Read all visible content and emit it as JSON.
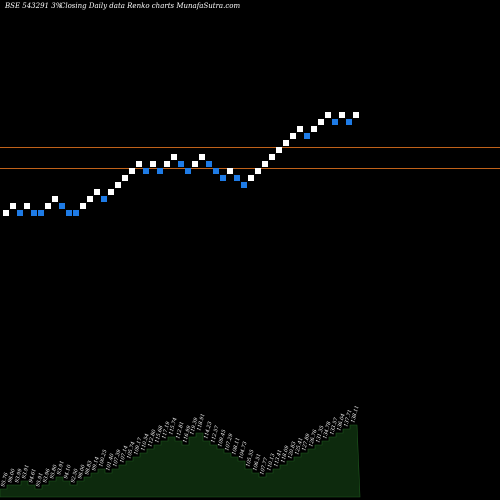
{
  "header": {
    "left": "BSE 543291 3%",
    "middle": "Closing Daily data  Renko  charts MunafaSutra.com"
  },
  "colors": {
    "background": "#000000",
    "up_brick": "#ffffff",
    "down_brick": "#1e7be6",
    "reference_line": "#c0621a",
    "volume_fill": "#0d2a0d",
    "text": "#ffffff"
  },
  "chart_data": {
    "type": "renko",
    "brick_size_percent": 3,
    "bricks": [
      {
        "dir": "up",
        "level": 7
      },
      {
        "dir": "up",
        "level": 8
      },
      {
        "dir": "down",
        "level": 7
      },
      {
        "dir": "up",
        "level": 8
      },
      {
        "dir": "down",
        "level": 7
      },
      {
        "dir": "down",
        "level": 7
      },
      {
        "dir": "up",
        "level": 8
      },
      {
        "dir": "up",
        "level": 9
      },
      {
        "dir": "down",
        "level": 8
      },
      {
        "dir": "down",
        "level": 7
      },
      {
        "dir": "down",
        "level": 7
      },
      {
        "dir": "up",
        "level": 8
      },
      {
        "dir": "up",
        "level": 9
      },
      {
        "dir": "up",
        "level": 10
      },
      {
        "dir": "down",
        "level": 9
      },
      {
        "dir": "up",
        "level": 10
      },
      {
        "dir": "up",
        "level": 11
      },
      {
        "dir": "up",
        "level": 12
      },
      {
        "dir": "up",
        "level": 13
      },
      {
        "dir": "up",
        "level": 14
      },
      {
        "dir": "down",
        "level": 13
      },
      {
        "dir": "up",
        "level": 14
      },
      {
        "dir": "down",
        "level": 13
      },
      {
        "dir": "up",
        "level": 14
      },
      {
        "dir": "up",
        "level": 15
      },
      {
        "dir": "down",
        "level": 14
      },
      {
        "dir": "down",
        "level": 13
      },
      {
        "dir": "up",
        "level": 14
      },
      {
        "dir": "up",
        "level": 15
      },
      {
        "dir": "down",
        "level": 14
      },
      {
        "dir": "down",
        "level": 13
      },
      {
        "dir": "down",
        "level": 12
      },
      {
        "dir": "up",
        "level": 13
      },
      {
        "dir": "down",
        "level": 12
      },
      {
        "dir": "down",
        "level": 11
      },
      {
        "dir": "up",
        "level": 12
      },
      {
        "dir": "up",
        "level": 13
      },
      {
        "dir": "up",
        "level": 14
      },
      {
        "dir": "up",
        "level": 15
      },
      {
        "dir": "up",
        "level": 16
      },
      {
        "dir": "up",
        "level": 17
      },
      {
        "dir": "up",
        "level": 18
      },
      {
        "dir": "up",
        "level": 19
      },
      {
        "dir": "down",
        "level": 18
      },
      {
        "dir": "up",
        "level": 19
      },
      {
        "dir": "up",
        "level": 20
      },
      {
        "dir": "up",
        "level": 21
      },
      {
        "dir": "down",
        "level": 20
      },
      {
        "dir": "up",
        "level": 21
      },
      {
        "dir": "down",
        "level": 20
      },
      {
        "dir": "up",
        "level": 21
      }
    ],
    "reference_lines": [
      {
        "level": 16.5
      },
      {
        "level": 13.5
      }
    ],
    "volume_profile": [
      2,
      3,
      3,
      4,
      3,
      2,
      3,
      4,
      5,
      4,
      3,
      4,
      5,
      6,
      7,
      6,
      7,
      8,
      9,
      10,
      11,
      12,
      13,
      14,
      15,
      14,
      13,
      15,
      16,
      14,
      13,
      12,
      11,
      10,
      9,
      7,
      6,
      5,
      6,
      7,
      8,
      9,
      10,
      11,
      12,
      13,
      14,
      15,
      16,
      17,
      18
    ],
    "volume_labels": [
      "95.76",
      "96.00",
      "93.99",
      "93.91",
      "94.61",
      "95.91",
      "93.96",
      "95.80",
      "93.91",
      "94.10",
      "92.50",
      "96.00",
      "98.83",
      "99.14",
      "100.25",
      "101.40",
      "107.39",
      "107.14",
      "105.74",
      "109.17",
      "110.54",
      "112.80",
      "115.68",
      "117.19",
      "115.74",
      "112.81",
      "116.99",
      "119.39",
      "118.91",
      "114.23",
      "112.57",
      "109.45",
      "107.29",
      "108.11",
      "104.73",
      "105.55",
      "106.51",
      "107.77",
      "110.13",
      "113.41",
      "118.09",
      "120.83",
      "125.41",
      "127.89",
      "126.76",
      "131.35",
      "134.78",
      "133.57",
      "136.04",
      "137.71",
      "138.11"
    ]
  }
}
